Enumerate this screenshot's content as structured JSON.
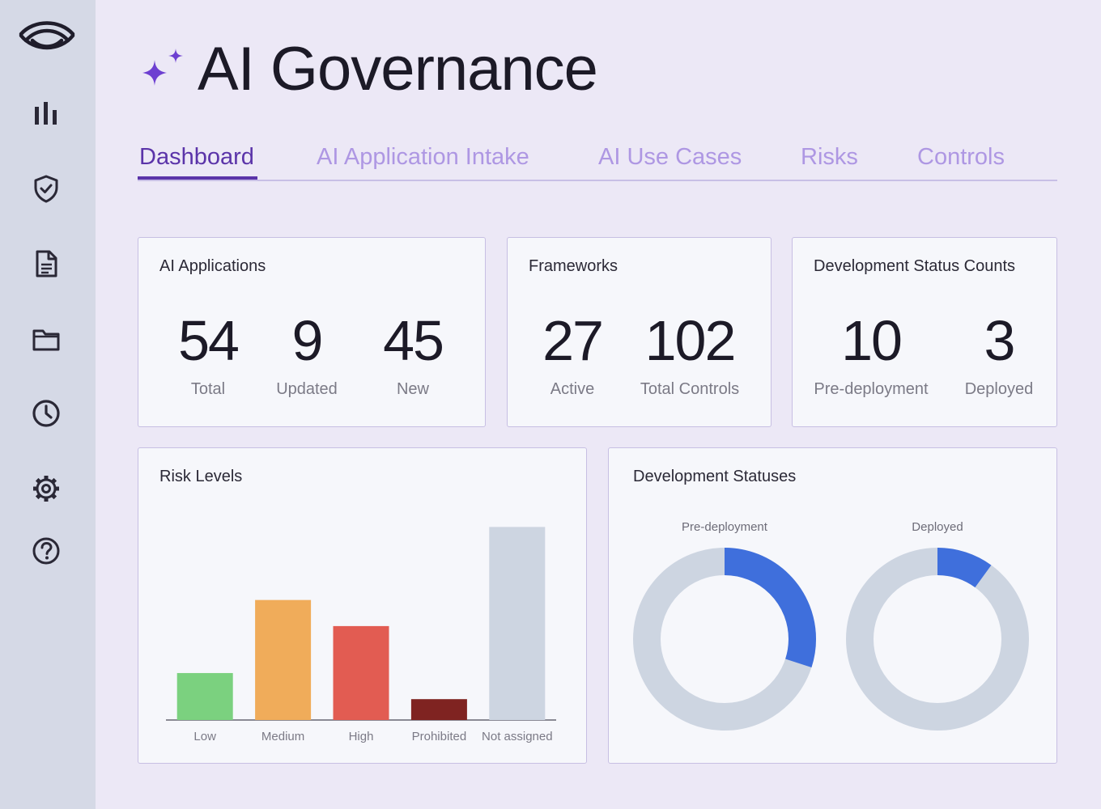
{
  "app": {
    "title": "AI Governance",
    "brand_color": "#6d3fd1"
  },
  "sidebar": {
    "items": [
      {
        "icon": "bar-chart-icon"
      },
      {
        "icon": "shield-check-icon"
      },
      {
        "icon": "document-icon"
      },
      {
        "icon": "folder-icon"
      },
      {
        "icon": "clock-icon"
      },
      {
        "icon": "gear-icon"
      },
      {
        "icon": "help-icon"
      }
    ]
  },
  "tabs": [
    {
      "label": "Dashboard",
      "active": true
    },
    {
      "label": "AI Application Intake",
      "active": false
    },
    {
      "label": "AI Use Cases",
      "active": false
    },
    {
      "label": "Risks",
      "active": false
    },
    {
      "label": "Controls",
      "active": false
    }
  ],
  "cards": {
    "ai_applications": {
      "title": "AI Applications",
      "stats": [
        {
          "value": "54",
          "label": "Total"
        },
        {
          "value": "9",
          "label": "Updated"
        },
        {
          "value": "45",
          "label": "New"
        }
      ]
    },
    "frameworks": {
      "title": "Frameworks",
      "stats": [
        {
          "value": "27",
          "label": "Active"
        },
        {
          "value": "102",
          "label": "Total Controls"
        }
      ]
    },
    "dev_status_counts": {
      "title": "Development Status Counts",
      "stats": [
        {
          "value": "10",
          "label": "Pre-deployment"
        },
        {
          "value": "3",
          "label": "Deployed"
        }
      ]
    },
    "risk_levels": {
      "title": "Risk Levels"
    },
    "dev_statuses": {
      "title": "Development Statuses"
    }
  },
  "chart_data": [
    {
      "type": "bar",
      "title": "Risk Levels",
      "categories": [
        "Low",
        "Medium",
        "High",
        "Prohibited",
        "Not assigned"
      ],
      "values": [
        9,
        23,
        18,
        4,
        37
      ],
      "colors": [
        "#7bd17f",
        "#f0ac5a",
        "#e25c52",
        "#7f2321",
        "#cdd5e1"
      ],
      "ylim": [
        0,
        40
      ],
      "grid": false,
      "legend": "none"
    },
    {
      "type": "pie",
      "title": "Development Statuses",
      "donuts": [
        {
          "label": "Pre-deployment",
          "fraction": 0.3,
          "color": "#3f6fdc",
          "track_color": "#cdd5e1"
        },
        {
          "label": "Deployed",
          "fraction": 0.1,
          "color": "#3f6fdc",
          "track_color": "#cdd5e1"
        }
      ]
    }
  ]
}
